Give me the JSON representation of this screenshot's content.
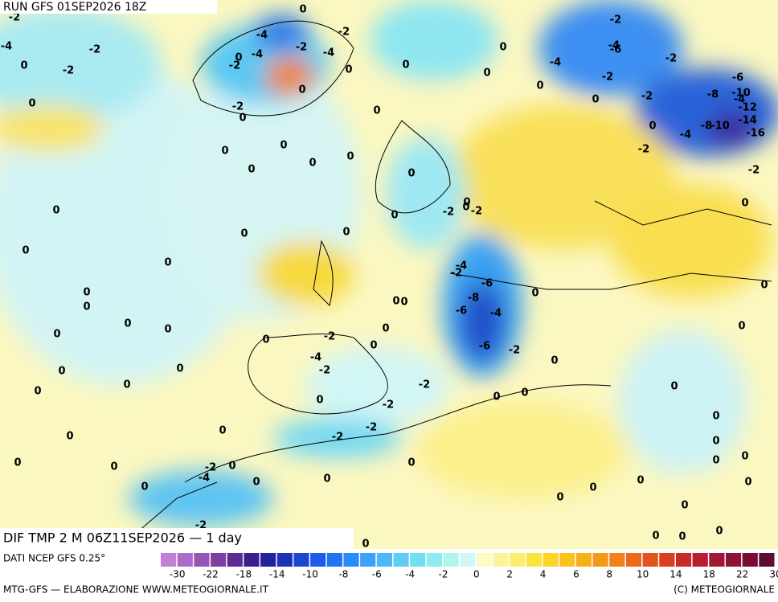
{
  "header": {
    "run": "RUN GFS 01SEP2026 18Z"
  },
  "map": {
    "title": "DIF TMP 2 M 06Z11SEP2026 — 1 day",
    "contour_labels": [
      -2,
      0,
      -4,
      -2,
      -2,
      -2,
      -4,
      0,
      -2,
      0,
      -4,
      -4,
      -2,
      0,
      -2,
      -4,
      0,
      -6,
      -4,
      -2,
      0,
      0,
      -2,
      -6,
      0,
      -2,
      -8,
      -10,
      -4,
      -12,
      -14,
      -16,
      0,
      0,
      0,
      -2,
      0,
      0,
      0,
      -4,
      -8,
      -10,
      0,
      -2,
      0,
      0,
      0,
      0,
      0,
      -2,
      0,
      0,
      -2,
      0,
      -2,
      0,
      0,
      0,
      0,
      0,
      0,
      -4,
      -2,
      -6,
      0,
      0,
      0,
      0,
      0,
      0,
      -8,
      -6,
      -4,
      0,
      0,
      0,
      0,
      0,
      -2,
      0,
      -6,
      -2,
      -4,
      0,
      0,
      -2,
      0,
      0,
      0,
      -2,
      0,
      0,
      0,
      0,
      0,
      -2,
      0,
      -2,
      -2,
      0,
      0,
      0,
      0,
      0,
      -2,
      0,
      0,
      0,
      0,
      -4,
      0,
      0,
      0,
      0,
      0,
      0,
      0,
      0,
      -2,
      0,
      0,
      0,
      0
    ]
  },
  "legend": {
    "source": "DATI NCEP GFS 0.25°",
    "colors": [
      "#c27fd6",
      "#ad6bc9",
      "#9656b8",
      "#7c3fa3",
      "#5b2c91",
      "#3a1f8a",
      "#22209c",
      "#1c30b8",
      "#1a46d2",
      "#1d5ce6",
      "#2272f2",
      "#2b8af7",
      "#3aa2f8",
      "#4bb9f7",
      "#5ecdf3",
      "#72dff0",
      "#8decef",
      "#b0f3f0",
      "#d2f8f4",
      "#fbfbc8",
      "#fbf59a",
      "#fbee6a",
      "#fbe23c",
      "#fbd425",
      "#f9c21d",
      "#f7ae1b",
      "#f4981a",
      "#f0811b",
      "#ec6a1c",
      "#e4531e",
      "#d93d22",
      "#cb2a28",
      "#b91d30",
      "#a41636",
      "#8e1138",
      "#770d36",
      "#600b31"
    ],
    "ticks": [
      -30,
      -22,
      -18,
      -14,
      -10,
      -8,
      -6,
      -4,
      -2,
      0,
      2,
      4,
      6,
      8,
      10,
      14,
      18,
      22,
      30
    ]
  },
  "footer": {
    "left": "MTG-GFS — ELABORAZIONE WWW.METEOGIORNALE.IT",
    "right": "(C) METEOGIORNALE"
  }
}
